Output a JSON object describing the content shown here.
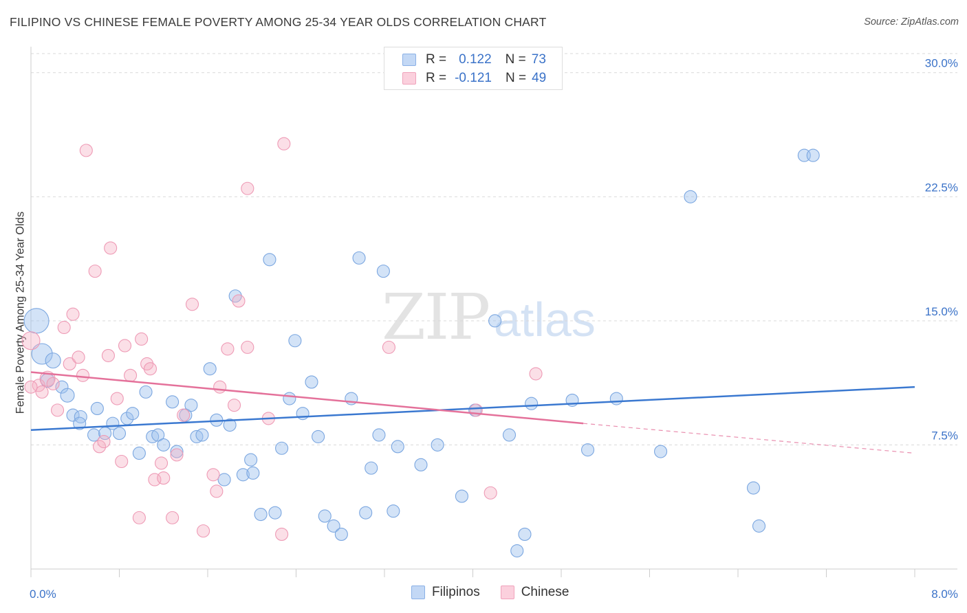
{
  "header": {
    "title": "FILIPINO VS CHINESE FEMALE POVERTY AMONG 25-34 YEAR OLDS CORRELATION CHART",
    "source": "Source: ZipAtlas.com"
  },
  "watermark": {
    "part1": "ZIP",
    "part2": "atlas"
  },
  "legend": {
    "rows": [
      {
        "r_label": "R =",
        "r_value": "0.122",
        "n_label": "N =",
        "n_value": "73",
        "color": "#9dc0ee"
      },
      {
        "r_label": "R =",
        "r_value": "-0.121",
        "n_label": "N =",
        "n_value": "49",
        "color": "#f4aec4"
      }
    ]
  },
  "bottom_legend": [
    {
      "label": "Filipinos",
      "color": "#9dc0ee"
    },
    {
      "label": "Chinese",
      "color": "#f4aec4"
    }
  ],
  "chart_data": {
    "type": "scatter",
    "title": "FILIPINO VS CHINESE FEMALE POVERTY AMONG 25-34 YEAR OLDS CORRELATION CHART",
    "xlabel": "",
    "ylabel": "Female Poverty Among 25-34 Year Olds",
    "xlim": [
      0,
      8
    ],
    "ylim": [
      0,
      31.4
    ],
    "x_tick_labels": [
      "0.0%",
      "8.0%"
    ],
    "y_ticks": [
      7.5,
      15.0,
      22.5,
      30.0
    ],
    "y_tick_labels": [
      "7.5%",
      "15.0%",
      "22.5%",
      "30.0%"
    ],
    "grid": "horizontal dashed",
    "legend_position": "top-center",
    "colors": {
      "filipinos": "#3a78d0",
      "chinese": "#e4719a",
      "axis_text": "#3a72c8"
    },
    "series": [
      {
        "name": "Filipinos",
        "r": 0.122,
        "n": 73,
        "trend": {
          "x": [
            0,
            8
          ],
          "y": [
            8.4,
            11.0
          ]
        },
        "points": [
          {
            "x": 0.05,
            "y": 15.0,
            "s": 18
          },
          {
            "x": 0.1,
            "y": 13.0,
            "s": 15
          },
          {
            "x": 0.2,
            "y": 12.6,
            "s": 11
          },
          {
            "x": 0.15,
            "y": 11.4,
            "s": 10
          },
          {
            "x": 0.28,
            "y": 11.0,
            "s": 9
          },
          {
            "x": 0.33,
            "y": 10.5,
            "s": 10
          },
          {
            "x": 0.38,
            "y": 9.3,
            "s": 9
          },
          {
            "x": 0.45,
            "y": 9.2,
            "s": 9
          },
          {
            "x": 0.44,
            "y": 8.8,
            "s": 9
          },
          {
            "x": 0.6,
            "y": 9.7,
            "s": 9
          },
          {
            "x": 0.57,
            "y": 8.1,
            "s": 9
          },
          {
            "x": 0.67,
            "y": 8.2,
            "s": 9
          },
          {
            "x": 0.74,
            "y": 8.8,
            "s": 9
          },
          {
            "x": 0.8,
            "y": 8.2,
            "s": 9
          },
          {
            "x": 0.87,
            "y": 9.1,
            "s": 9
          },
          {
            "x": 0.92,
            "y": 9.4,
            "s": 9
          },
          {
            "x": 0.98,
            "y": 7.0,
            "s": 9
          },
          {
            "x": 1.04,
            "y": 10.7,
            "s": 9
          },
          {
            "x": 1.1,
            "y": 8.0,
            "s": 9
          },
          {
            "x": 1.15,
            "y": 8.1,
            "s": 9
          },
          {
            "x": 1.2,
            "y": 7.5,
            "s": 9
          },
          {
            "x": 1.28,
            "y": 10.1,
            "s": 9
          },
          {
            "x": 1.32,
            "y": 7.1,
            "s": 9
          },
          {
            "x": 1.4,
            "y": 9.3,
            "s": 9
          },
          {
            "x": 1.45,
            "y": 9.9,
            "s": 9
          },
          {
            "x": 1.5,
            "y": 8.0,
            "s": 9
          },
          {
            "x": 1.55,
            "y": 8.1,
            "s": 9
          },
          {
            "x": 1.62,
            "y": 12.1,
            "s": 9
          },
          {
            "x": 1.68,
            "y": 9.0,
            "s": 9
          },
          {
            "x": 1.75,
            "y": 5.4,
            "s": 9
          },
          {
            "x": 1.8,
            "y": 8.7,
            "s": 9
          },
          {
            "x": 1.85,
            "y": 16.5,
            "s": 9
          },
          {
            "x": 1.92,
            "y": 5.7,
            "s": 9
          },
          {
            "x": 1.99,
            "y": 6.6,
            "s": 9
          },
          {
            "x": 2.01,
            "y": 5.8,
            "s": 9
          },
          {
            "x": 2.08,
            "y": 3.3,
            "s": 9
          },
          {
            "x": 2.16,
            "y": 18.7,
            "s": 9
          },
          {
            "x": 2.21,
            "y": 3.4,
            "s": 9
          },
          {
            "x": 2.27,
            "y": 7.3,
            "s": 9
          },
          {
            "x": 2.34,
            "y": 10.3,
            "s": 9
          },
          {
            "x": 2.39,
            "y": 13.8,
            "s": 9
          },
          {
            "x": 2.46,
            "y": 9.4,
            "s": 9
          },
          {
            "x": 2.54,
            "y": 11.3,
            "s": 9
          },
          {
            "x": 2.6,
            "y": 8.0,
            "s": 9
          },
          {
            "x": 2.66,
            "y": 3.2,
            "s": 9
          },
          {
            "x": 2.74,
            "y": 2.6,
            "s": 9
          },
          {
            "x": 2.81,
            "y": 2.1,
            "s": 9
          },
          {
            "x": 2.9,
            "y": 10.3,
            "s": 9
          },
          {
            "x": 2.97,
            "y": 18.8,
            "s": 9
          },
          {
            "x": 3.03,
            "y": 3.4,
            "s": 9
          },
          {
            "x": 3.08,
            "y": 6.1,
            "s": 9
          },
          {
            "x": 3.15,
            "y": 8.1,
            "s": 9
          },
          {
            "x": 3.19,
            "y": 18.0,
            "s": 9
          },
          {
            "x": 3.28,
            "y": 3.5,
            "s": 9
          },
          {
            "x": 3.32,
            "y": 7.4,
            "s": 9
          },
          {
            "x": 3.53,
            "y": 6.3,
            "s": 9
          },
          {
            "x": 3.68,
            "y": 7.5,
            "s": 9
          },
          {
            "x": 3.9,
            "y": 4.4,
            "s": 9
          },
          {
            "x": 4.02,
            "y": 9.6,
            "s": 9
          },
          {
            "x": 4.2,
            "y": 15.0,
            "s": 9
          },
          {
            "x": 4.33,
            "y": 8.1,
            "s": 9
          },
          {
            "x": 4.4,
            "y": 1.1,
            "s": 9
          },
          {
            "x": 4.47,
            "y": 2.1,
            "s": 9
          },
          {
            "x": 4.53,
            "y": 10.0,
            "s": 9
          },
          {
            "x": 4.9,
            "y": 10.2,
            "s": 9
          },
          {
            "x": 5.04,
            "y": 7.2,
            "s": 9
          },
          {
            "x": 5.3,
            "y": 10.3,
            "s": 9
          },
          {
            "x": 5.7,
            "y": 7.1,
            "s": 9
          },
          {
            "x": 5.97,
            "y": 22.5,
            "s": 9
          },
          {
            "x": 6.54,
            "y": 4.9,
            "s": 9
          },
          {
            "x": 6.59,
            "y": 2.6,
            "s": 9
          },
          {
            "x": 7.0,
            "y": 25.0,
            "s": 9
          },
          {
            "x": 7.08,
            "y": 25.0,
            "s": 9
          }
        ]
      },
      {
        "name": "Chinese",
        "r": -0.121,
        "n": 49,
        "trend": {
          "x": [
            0,
            5.0
          ],
          "y": [
            11.9,
            8.8
          ]
        },
        "trend_dashed": {
          "x": [
            5.0,
            8
          ],
          "y": [
            8.8,
            7.0
          ]
        },
        "points": [
          {
            "x": 0.0,
            "y": 13.8,
            "s": 13
          },
          {
            "x": 0.07,
            "y": 11.1,
            "s": 9
          },
          {
            "x": 0.1,
            "y": 10.7,
            "s": 9
          },
          {
            "x": 0.15,
            "y": 11.5,
            "s": 11
          },
          {
            "x": 0.2,
            "y": 11.2,
            "s": 9
          },
          {
            "x": 0.24,
            "y": 9.6,
            "s": 9
          },
          {
            "x": 0.3,
            "y": 14.6,
            "s": 9
          },
          {
            "x": 0.35,
            "y": 12.4,
            "s": 9
          },
          {
            "x": 0.38,
            "y": 15.4,
            "s": 9
          },
          {
            "x": 0.43,
            "y": 12.8,
            "s": 9
          },
          {
            "x": 0.47,
            "y": 11.7,
            "s": 9
          },
          {
            "x": 0.5,
            "y": 25.3,
            "s": 9
          },
          {
            "x": 0.58,
            "y": 18.0,
            "s": 9
          },
          {
            "x": 0.62,
            "y": 7.4,
            "s": 9
          },
          {
            "x": 0.66,
            "y": 7.7,
            "s": 9
          },
          {
            "x": 0.7,
            "y": 12.9,
            "s": 9
          },
          {
            "x": 0.72,
            "y": 19.4,
            "s": 9
          },
          {
            "x": 0.78,
            "y": 10.3,
            "s": 9
          },
          {
            "x": 0.82,
            "y": 6.5,
            "s": 9
          },
          {
            "x": 0.85,
            "y": 13.5,
            "s": 9
          },
          {
            "x": 0.9,
            "y": 11.7,
            "s": 9
          },
          {
            "x": 0.98,
            "y": 3.1,
            "s": 9
          },
          {
            "x": 1.0,
            "y": 13.9,
            "s": 9
          },
          {
            "x": 1.05,
            "y": 12.4,
            "s": 9
          },
          {
            "x": 1.08,
            "y": 12.1,
            "s": 9
          },
          {
            "x": 1.12,
            "y": 5.4,
            "s": 9
          },
          {
            "x": 1.18,
            "y": 6.4,
            "s": 9
          },
          {
            "x": 1.2,
            "y": 5.5,
            "s": 9
          },
          {
            "x": 1.28,
            "y": 3.1,
            "s": 9
          },
          {
            "x": 1.32,
            "y": 6.9,
            "s": 9
          },
          {
            "x": 1.38,
            "y": 9.3,
            "s": 9
          },
          {
            "x": 1.46,
            "y": 16.0,
            "s": 9
          },
          {
            "x": 1.56,
            "y": 2.3,
            "s": 9
          },
          {
            "x": 1.65,
            "y": 5.7,
            "s": 9
          },
          {
            "x": 1.68,
            "y": 4.7,
            "s": 9
          },
          {
            "x": 1.71,
            "y": 11.0,
            "s": 9
          },
          {
            "x": 1.78,
            "y": 13.3,
            "s": 9
          },
          {
            "x": 1.84,
            "y": 9.9,
            "s": 9
          },
          {
            "x": 1.88,
            "y": 16.2,
            "s": 9
          },
          {
            "x": 1.96,
            "y": 13.4,
            "s": 9
          },
          {
            "x": 1.96,
            "y": 23.0,
            "s": 9
          },
          {
            "x": 2.15,
            "y": 9.1,
            "s": 9
          },
          {
            "x": 2.27,
            "y": 2.1,
            "s": 9
          },
          {
            "x": 2.29,
            "y": 25.7,
            "s": 9
          },
          {
            "x": 3.24,
            "y": 13.4,
            "s": 9
          },
          {
            "x": 4.03,
            "y": 9.6,
            "s": 9
          },
          {
            "x": 4.16,
            "y": 4.6,
            "s": 9
          },
          {
            "x": 4.57,
            "y": 11.8,
            "s": 9
          },
          {
            "x": 0.0,
            "y": 11.0,
            "s": 9
          }
        ]
      }
    ]
  }
}
